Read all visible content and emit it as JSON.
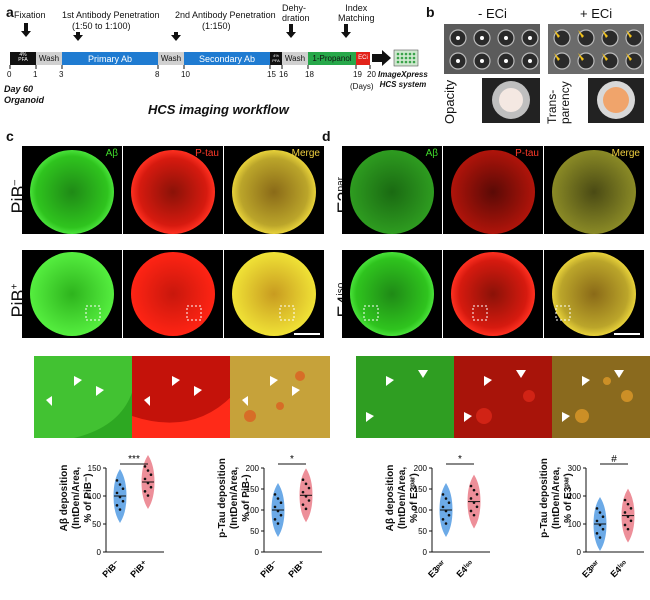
{
  "panels": {
    "a": "a",
    "b": "b",
    "c": "c",
    "d": "d"
  },
  "workflow": {
    "fixation": "Fixation",
    "ab1_head": "1st Antibody Penetration",
    "ab1_dil": "(1:50 to 1:100)",
    "ab2_head": "2nd Antibody Penetration",
    "ab2_dil": "(1:150)",
    "dehydration": "Dehy-\ndration",
    "index": "Index\nMatching",
    "pfa": "4%\nPFA",
    "wash": "Wash",
    "primary": "Primary Ab",
    "secondary": "Secondary Ab",
    "propanol": "1-Propanol",
    "eci": "ECi",
    "days": [
      "0",
      "1",
      "3",
      "8",
      "10",
      "15",
      "16",
      "18",
      "19",
      "20"
    ],
    "days_unit": "(Days)",
    "day60": "Day 60",
    "organoid": "Organoid",
    "system": "ImageXpress\nHCS system",
    "footer": "HCS imaging workflow"
  },
  "clearing": {
    "minus": "- ECi",
    "plus": "+ ECi",
    "opacity": "Opacity",
    "transparency": "Trans-\nparency"
  },
  "channels": [
    "Aβ",
    "P-tau",
    "Merge"
  ],
  "rows_c": {
    "top": "PiB",
    "top_sup": "–",
    "bottom": "PiB",
    "bottom_sup": "+"
  },
  "rows_d": {
    "top": "E3",
    "top_sup": "par",
    "bottom": "E4",
    "bottom_sup": "iso"
  },
  "colors": {
    "green": "#2ecc1f",
    "red": "#e01b10",
    "merge": "#c9b42a",
    "blue": "#3b8ee0",
    "pink": "#e86a78"
  },
  "chart_data": [
    {
      "type": "violin",
      "ylabel": "Aβ deposition\n(IntDen/Area,\n% of PiB⁻)",
      "categories": [
        "PiB⁻",
        "PiB⁺"
      ],
      "ylim": [
        0,
        150
      ],
      "yticks": [
        0,
        50,
        100,
        150
      ],
      "values": [
        100,
        125
      ],
      "significance": "***"
    },
    {
      "type": "violin",
      "ylabel": "p-Tau deposition\n(IntDen/Area,\n% of PiB-)",
      "categories": [
        "PiB⁻",
        "PiB⁺"
      ],
      "ylim": [
        0,
        200
      ],
      "yticks": [
        0,
        50,
        100,
        150,
        200
      ],
      "values": [
        100,
        135
      ],
      "significance": "*"
    },
    {
      "type": "violin",
      "ylabel": "Aβ deposition\n(IntDen/Area,\n% of E3ᵖᵃʳ)",
      "categories": [
        "E3ᵖᵃʳ",
        "E4ⁱˢᵒ"
      ],
      "ylim": [
        0,
        200
      ],
      "yticks": [
        0,
        50,
        100,
        150,
        200
      ],
      "values": [
        100,
        120
      ],
      "significance": "*"
    },
    {
      "type": "violin",
      "ylabel": "p-Tau deposition\n(IntDen/Area,\n% of E3ᵖᵃʳ)",
      "categories": [
        "E3ᵖᵃʳ",
        "E4ⁱˢᵒ"
      ],
      "ylim": [
        0,
        300
      ],
      "yticks": [
        0,
        100,
        200,
        300
      ],
      "values": [
        100,
        130
      ],
      "significance": "#"
    }
  ]
}
